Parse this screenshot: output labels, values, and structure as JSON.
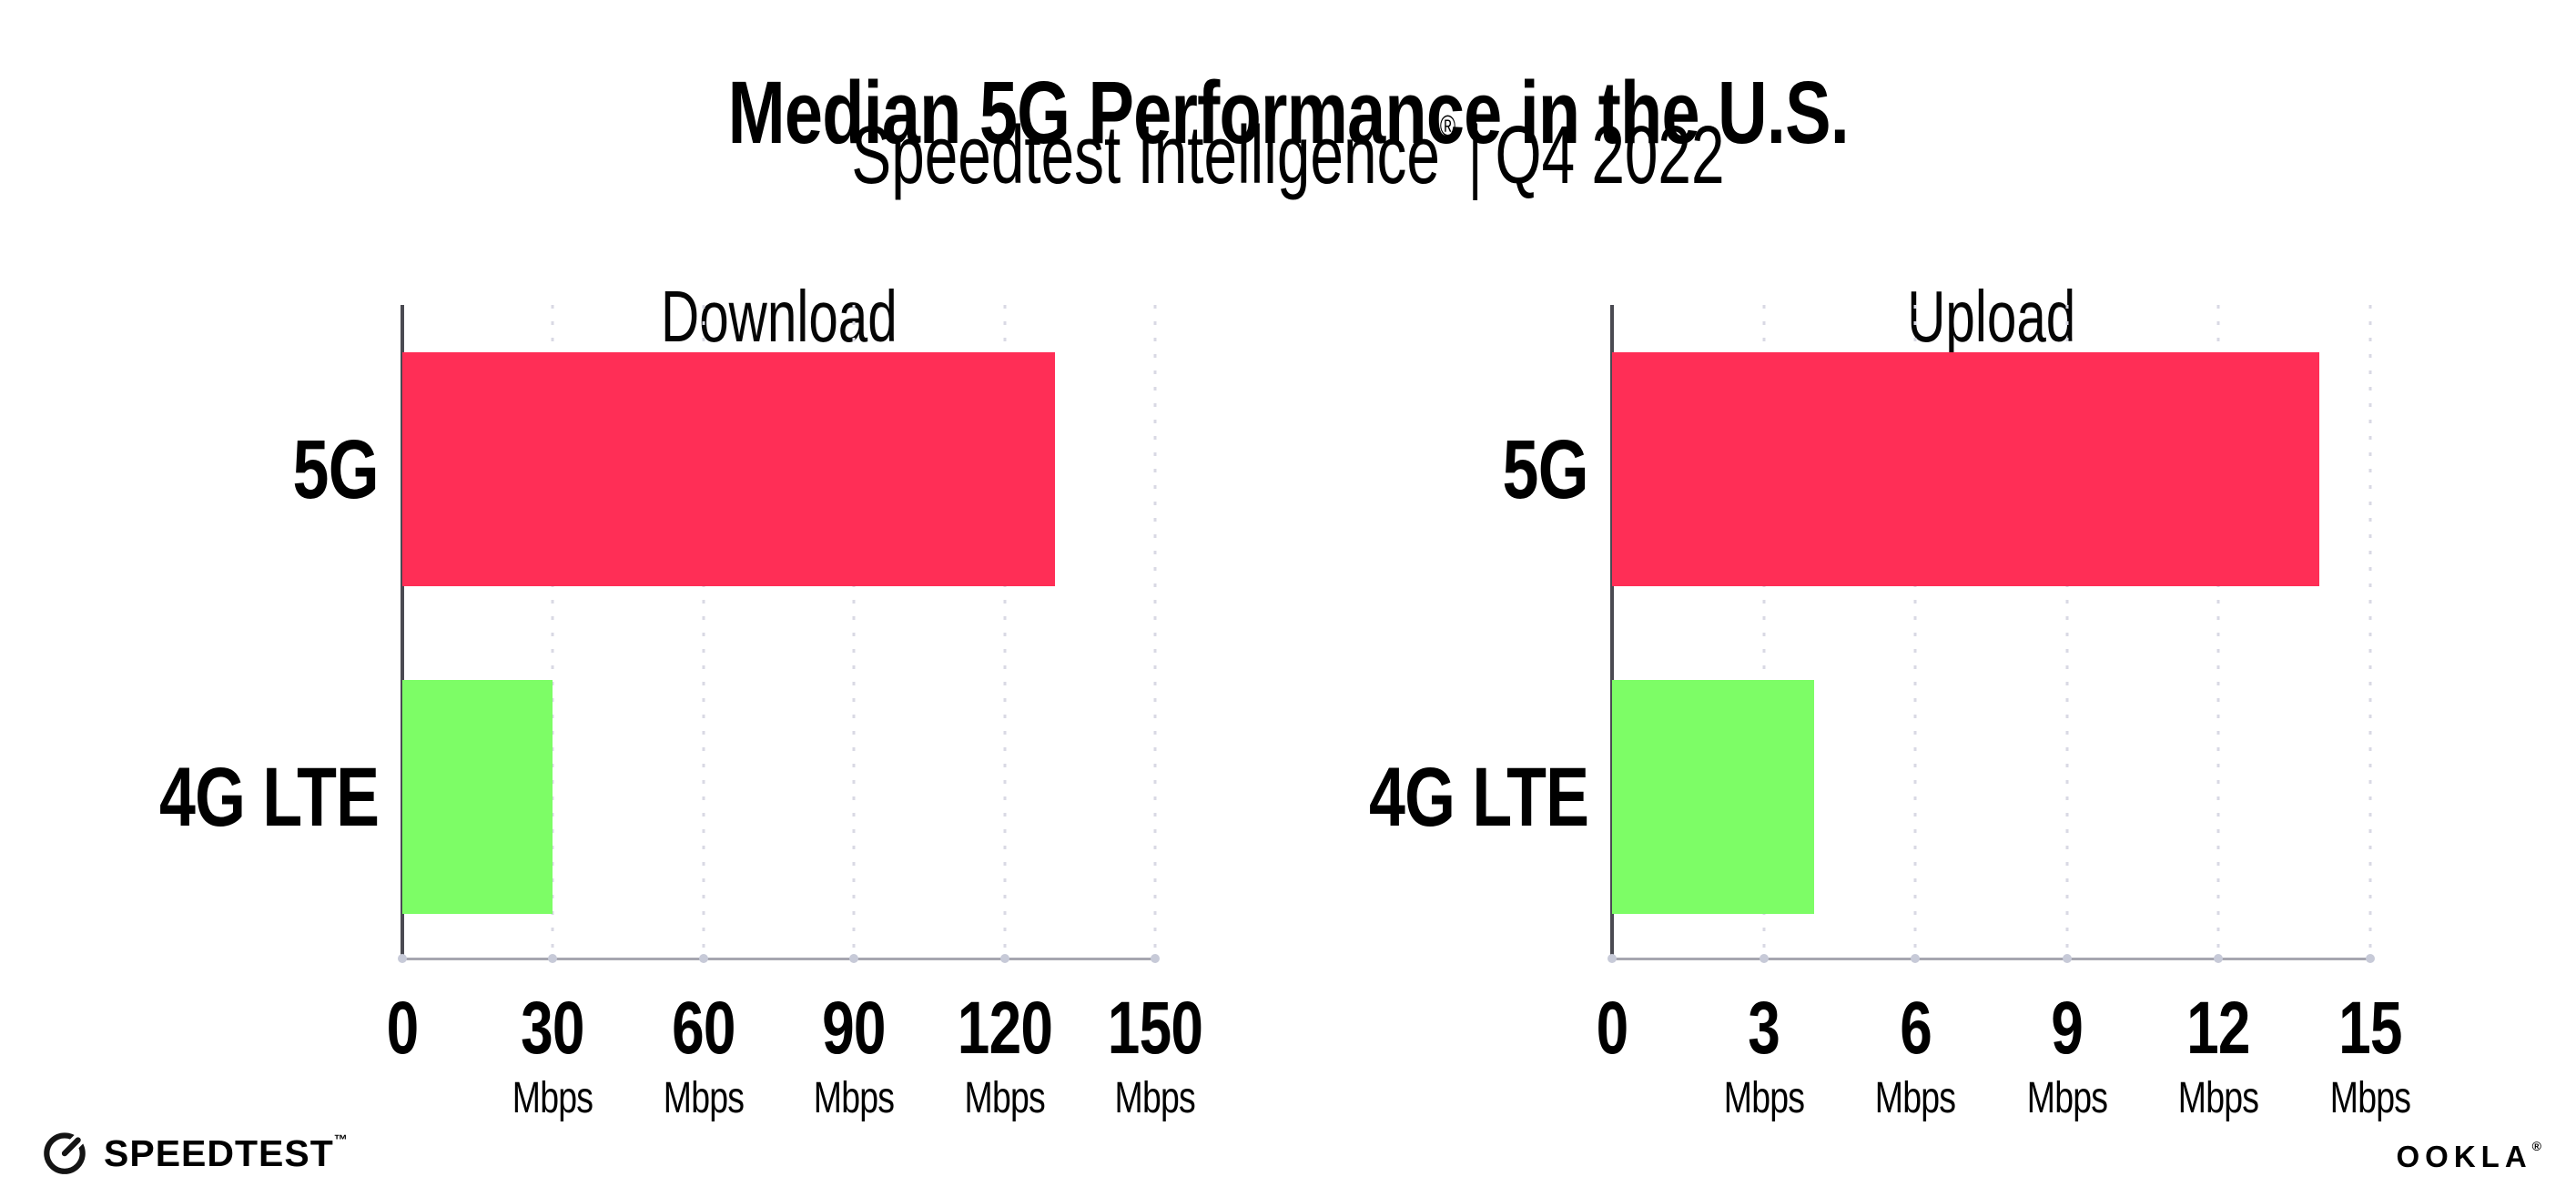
{
  "header": {
    "title": "Median 5G Performance in the U.S.",
    "subtitle": {
      "brand": "Speedtest Intelligence",
      "reg_mark": "®",
      "separator": "|",
      "period": "Q4 2022"
    }
  },
  "chart_data": [
    {
      "type": "bar",
      "orientation": "horizontal",
      "title": "Download",
      "categories": [
        "5G",
        "4G LTE"
      ],
      "values": [
        130,
        30
      ],
      "unit": "Mbps",
      "xlabel": "",
      "ylabel": "",
      "xlim": [
        0,
        150
      ],
      "xticks": [
        0,
        30,
        60,
        90,
        120,
        150
      ],
      "bar_colors": [
        "#FF2E56",
        "#7DFD66"
      ],
      "gridlines": "dotted-vertical",
      "legend": "none"
    },
    {
      "type": "bar",
      "orientation": "horizontal",
      "title": "Upload",
      "categories": [
        "5G",
        "4G LTE"
      ],
      "values": [
        14,
        4
      ],
      "unit": "Mbps",
      "xlabel": "",
      "ylabel": "",
      "xlim": [
        0,
        15
      ],
      "xticks": [
        0,
        3,
        6,
        9,
        12,
        15
      ],
      "bar_colors": [
        "#FF2E56",
        "#7DFD66"
      ],
      "gridlines": "dotted-vertical",
      "legend": "none"
    }
  ],
  "colors": {
    "bar_5g": "#FF2E56",
    "bar_4g_lte": "#7DFD66",
    "y_axis": "#4a4a52",
    "x_axis": "#a6a6b0",
    "gridline": "#d9d9e4"
  },
  "footer": {
    "speedtest_icon": "speedtest-gauge-icon",
    "speedtest_wordmark": "SPEEDTEST",
    "speedtest_trademark": "™",
    "ookla_wordmark": "OOKLA",
    "ookla_trademark": "®"
  }
}
